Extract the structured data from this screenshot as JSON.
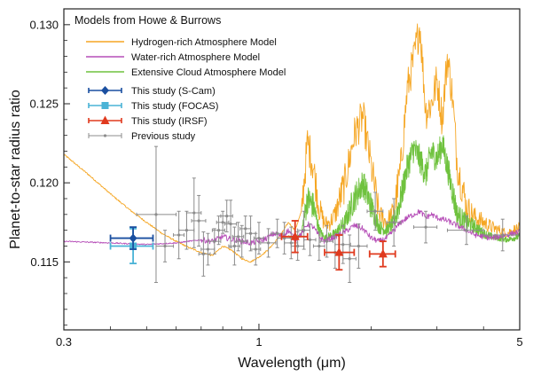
{
  "chart_data": {
    "type": "line",
    "xlabel": "Wavelength (μm)",
    "ylabel": "Planet-to-star radius ratio",
    "x_scale": "log",
    "xlim": [
      0.3,
      5
    ],
    "ylim": [
      0.1107,
      0.131
    ],
    "x_ticks": [
      {
        "value": 0.3,
        "label": "0.3"
      },
      {
        "value": 1,
        "label": "1"
      },
      {
        "value": 5,
        "label": "5"
      }
    ],
    "y_ticks": [
      {
        "value": 0.115,
        "label": "0.115"
      },
      {
        "value": 0.12,
        "label": "0.120"
      },
      {
        "value": 0.125,
        "label": "0.125"
      },
      {
        "value": 0.13,
        "label": "0.130"
      }
    ],
    "legend_title": "Models from Howe & Burrows",
    "legend_position": "top-left",
    "colors": {
      "hydrogen": "#f5a623",
      "water": "#b64fb8",
      "cloud": "#6fc23e",
      "scam": "#1a4fa0",
      "focas": "#4ab3d6",
      "irsf": "#e03a1e",
      "previous": "#8c8c8c"
    },
    "series": [
      {
        "name": "Hydrogen-rich Atmosphere Model",
        "kind": "line",
        "color": "#f5a623",
        "x": [
          0.3,
          0.35,
          0.4,
          0.45,
          0.5,
          0.55,
          0.6,
          0.65,
          0.7,
          0.75,
          0.8,
          0.85,
          0.9,
          0.95,
          1.0,
          1.05,
          1.1,
          1.15,
          1.2,
          1.25,
          1.3,
          1.35,
          1.4,
          1.45,
          1.5,
          1.55,
          1.6,
          1.7,
          1.8,
          1.9,
          2.0,
          2.1,
          2.2,
          2.3,
          2.4,
          2.5,
          2.6,
          2.7,
          2.8,
          2.9,
          3.0,
          3.1,
          3.2,
          3.3,
          3.4,
          3.6,
          3.8,
          4.0,
          4.2,
          4.4,
          4.6,
          4.8,
          5.0
        ],
        "y": [
          0.1218,
          0.1205,
          0.1193,
          0.1183,
          0.1175,
          0.1168,
          0.1163,
          0.1159,
          0.1156,
          0.1154,
          0.116,
          0.1157,
          0.1152,
          0.115,
          0.1153,
          0.1157,
          0.1162,
          0.1168,
          0.1175,
          0.117,
          0.1182,
          0.1226,
          0.121,
          0.1184,
          0.1174,
          0.1175,
          0.118,
          0.12,
          0.123,
          0.1242,
          0.121,
          0.118,
          0.1175,
          0.1182,
          0.121,
          0.126,
          0.1278,
          0.13,
          0.1245,
          0.125,
          0.1265,
          0.124,
          0.128,
          0.1255,
          0.1212,
          0.1185,
          0.1178,
          0.1175,
          0.1172,
          0.117,
          0.1168,
          0.117,
          0.1171
        ]
      },
      {
        "name": "Water-rich Atmosphere Model",
        "kind": "line",
        "color": "#b64fb8",
        "x": [
          0.3,
          0.4,
          0.5,
          0.6,
          0.7,
          0.75,
          0.8,
          0.85,
          0.9,
          0.95,
          1.0,
          1.05,
          1.1,
          1.15,
          1.2,
          1.25,
          1.3,
          1.35,
          1.4,
          1.45,
          1.5,
          1.6,
          1.7,
          1.8,
          1.9,
          2.0,
          2.1,
          2.2,
          2.3,
          2.4,
          2.5,
          2.6,
          2.7,
          2.8,
          2.9,
          3.0,
          3.2,
          3.4,
          3.6,
          3.8,
          4.0,
          4.2,
          4.4,
          4.6,
          4.8,
          5.0
        ],
        "y": [
          0.1163,
          0.1162,
          0.1161,
          0.1162,
          0.1164,
          0.1163,
          0.1166,
          0.1164,
          0.1163,
          0.1162,
          0.1163,
          0.1165,
          0.1168,
          0.1166,
          0.117,
          0.1164,
          0.1168,
          0.1174,
          0.1172,
          0.1166,
          0.1163,
          0.1166,
          0.1169,
          0.1173,
          0.1171,
          0.1165,
          0.1163,
          0.1165,
          0.117,
          0.1175,
          0.1178,
          0.118,
          0.1182,
          0.1178,
          0.118,
          0.1178,
          0.1176,
          0.1173,
          0.117,
          0.1167,
          0.1166,
          0.1165,
          0.1166,
          0.1167,
          0.1168,
          0.1169
        ]
      },
      {
        "name": "Extensive Cloud Atmosphere Model",
        "kind": "line",
        "color": "#6fc23e",
        "x": [
          1.2,
          1.25,
          1.3,
          1.35,
          1.4,
          1.45,
          1.5,
          1.6,
          1.7,
          1.8,
          1.9,
          2.0,
          2.1,
          2.2,
          2.3,
          2.4,
          2.5,
          2.6,
          2.7,
          2.8,
          2.9,
          3.0,
          3.1,
          3.2,
          3.3,
          3.4,
          3.6,
          3.8,
          4.0,
          4.2,
          4.4,
          4.6,
          4.8,
          5.0
        ],
        "y": [
          0.1166,
          0.1164,
          0.1168,
          0.119,
          0.1185,
          0.117,
          0.1165,
          0.1168,
          0.1175,
          0.119,
          0.12,
          0.1185,
          0.1172,
          0.117,
          0.1175,
          0.119,
          0.121,
          0.1222,
          0.1215,
          0.1205,
          0.122,
          0.1215,
          0.1225,
          0.121,
          0.1195,
          0.118,
          0.1175,
          0.1172,
          0.1168,
          0.1166,
          0.1165,
          0.1164,
          0.1165,
          0.1166
        ]
      },
      {
        "name": "This study (S-Cam)",
        "kind": "errorbar",
        "color": "#1a4fa0",
        "marker": "diamond",
        "points": [
          {
            "x": 0.46,
            "y": 0.1165,
            "xlo": 0.4,
            "xhi": 0.52,
            "yerr": 0.0007
          }
        ]
      },
      {
        "name": "This study (FOCAS)",
        "kind": "errorbar",
        "color": "#4ab3d6",
        "marker": "square",
        "points": [
          {
            "x": 0.46,
            "y": 0.116,
            "xlo": 0.4,
            "xhi": 0.52,
            "yerr": 0.0011
          }
        ]
      },
      {
        "name": "This study (IRSF)",
        "kind": "errorbar",
        "color": "#e03a1e",
        "marker": "triangle",
        "points": [
          {
            "x": 1.25,
            "y": 0.1166,
            "xlo": 1.15,
            "xhi": 1.35,
            "yerr": 0.001
          },
          {
            "x": 1.64,
            "y": 0.1156,
            "xlo": 1.5,
            "xhi": 1.8,
            "yerr": 0.0011
          },
          {
            "x": 2.15,
            "y": 0.1155,
            "xlo": 1.98,
            "xhi": 2.32,
            "yerr": 0.0008
          }
        ]
      },
      {
        "name": "Previous study",
        "kind": "errorbar",
        "color": "#8c8c8c",
        "marker": "dot",
        "points": [
          {
            "x": 0.53,
            "y": 0.118,
            "xlo": 0.47,
            "xhi": 0.6,
            "yerr": 0.0043
          },
          {
            "x": 0.56,
            "y": 0.116,
            "xlo": 0.53,
            "xhi": 0.59,
            "yerr": 0.001
          },
          {
            "x": 0.61,
            "y": 0.1167,
            "xlo": 0.59,
            "xhi": 0.63,
            "yerr": 0.0015
          },
          {
            "x": 0.64,
            "y": 0.117,
            "xlo": 0.61,
            "xhi": 0.67,
            "yerr": 0.0012
          },
          {
            "x": 0.67,
            "y": 0.1181,
            "xlo": 0.64,
            "xhi": 0.7,
            "yerr": 0.0022
          },
          {
            "x": 0.69,
            "y": 0.1176,
            "xlo": 0.66,
            "xhi": 0.72,
            "yerr": 0.0016
          },
          {
            "x": 0.71,
            "y": 0.1155,
            "xlo": 0.69,
            "xhi": 0.74,
            "yerr": 0.0014
          },
          {
            "x": 0.73,
            "y": 0.1158,
            "xlo": 0.7,
            "xhi": 0.76,
            "yerr": 0.001
          },
          {
            "x": 0.76,
            "y": 0.1163,
            "xlo": 0.73,
            "xhi": 0.79,
            "yerr": 0.0008
          },
          {
            "x": 0.78,
            "y": 0.117,
            "xlo": 0.75,
            "xhi": 0.81,
            "yerr": 0.0009
          },
          {
            "x": 0.8,
            "y": 0.1175,
            "xlo": 0.77,
            "xhi": 0.83,
            "yerr": 0.0007
          },
          {
            "x": 0.82,
            "y": 0.1179,
            "xlo": 0.79,
            "xhi": 0.85,
            "yerr": 0.001
          },
          {
            "x": 0.84,
            "y": 0.1174,
            "xlo": 0.81,
            "xhi": 0.87,
            "yerr": 0.0015
          },
          {
            "x": 0.86,
            "y": 0.116,
            "xlo": 0.83,
            "xhi": 0.89,
            "yerr": 0.0012
          },
          {
            "x": 0.88,
            "y": 0.1166,
            "xlo": 0.85,
            "xhi": 0.91,
            "yerr": 0.0009
          },
          {
            "x": 0.9,
            "y": 0.1163,
            "xlo": 0.87,
            "xhi": 0.93,
            "yerr": 0.001
          },
          {
            "x": 0.92,
            "y": 0.1171,
            "xlo": 0.89,
            "xhi": 0.95,
            "yerr": 0.0008
          },
          {
            "x": 0.95,
            "y": 0.1168,
            "xlo": 0.92,
            "xhi": 0.98,
            "yerr": 0.0011
          },
          {
            "x": 0.98,
            "y": 0.1158,
            "xlo": 0.95,
            "xhi": 1.01,
            "yerr": 0.001
          },
          {
            "x": 1.0,
            "y": 0.1165,
            "xlo": 0.97,
            "xhi": 1.03,
            "yerr": 0.001
          },
          {
            "x": 1.06,
            "y": 0.1162,
            "xlo": 1.01,
            "xhi": 1.11,
            "yerr": 0.0009
          },
          {
            "x": 1.12,
            "y": 0.1168,
            "xlo": 1.08,
            "xhi": 1.16,
            "yerr": 0.0009
          },
          {
            "x": 1.17,
            "y": 0.1165,
            "xlo": 1.12,
            "xhi": 1.22,
            "yerr": 0.001
          },
          {
            "x": 1.22,
            "y": 0.1162,
            "xlo": 1.17,
            "xhi": 1.27,
            "yerr": 0.001
          },
          {
            "x": 1.27,
            "y": 0.116,
            "xlo": 1.22,
            "xhi": 1.32,
            "yerr": 0.0009
          },
          {
            "x": 1.32,
            "y": 0.117,
            "xlo": 1.27,
            "xhi": 1.37,
            "yerr": 0.0012
          },
          {
            "x": 1.37,
            "y": 0.1164,
            "xlo": 1.32,
            "xhi": 1.42,
            "yerr": 0.001
          },
          {
            "x": 1.45,
            "y": 0.116,
            "xlo": 1.4,
            "xhi": 1.5,
            "yerr": 0.0009
          },
          {
            "x": 1.52,
            "y": 0.1163,
            "xlo": 1.46,
            "xhi": 1.58,
            "yerr": 0.001
          },
          {
            "x": 1.6,
            "y": 0.1156,
            "xlo": 1.52,
            "xhi": 1.68,
            "yerr": 0.001
          },
          {
            "x": 1.68,
            "y": 0.1161,
            "xlo": 1.6,
            "xhi": 1.76,
            "yerr": 0.0012
          },
          {
            "x": 1.75,
            "y": 0.1152,
            "xlo": 1.68,
            "xhi": 1.82,
            "yerr": 0.0015
          },
          {
            "x": 1.85,
            "y": 0.116,
            "xlo": 1.75,
            "xhi": 1.95,
            "yerr": 0.0014
          },
          {
            "x": 2.05,
            "y": 0.1182,
            "xlo": 1.95,
            "xhi": 2.15,
            "yerr": 0.0012
          },
          {
            "x": 2.3,
            "y": 0.1175,
            "xlo": 2.2,
            "xhi": 2.4,
            "yerr": 0.0015
          },
          {
            "x": 2.8,
            "y": 0.1172,
            "xlo": 2.6,
            "xhi": 3.0,
            "yerr": 0.001
          },
          {
            "x": 3.6,
            "y": 0.117,
            "xlo": 3.2,
            "xhi": 4.0,
            "yerr": 0.0009
          },
          {
            "x": 4.5,
            "y": 0.1167,
            "xlo": 4.0,
            "xhi": 5.0,
            "yerr": 0.001
          }
        ]
      }
    ]
  }
}
